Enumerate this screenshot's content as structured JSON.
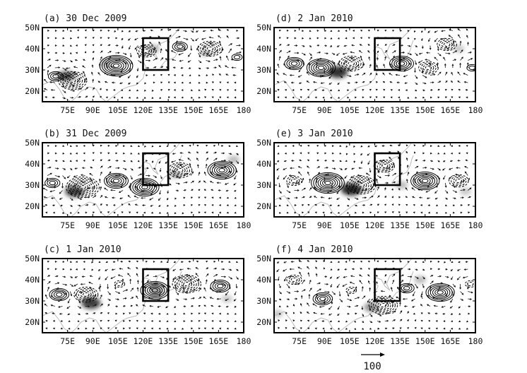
{
  "chart_data": [
    {
      "type": "contour",
      "panel": "a",
      "title": "(a) 30 Dec 2009",
      "lon_ticks": [
        "75E",
        "90E",
        "105E",
        "120E",
        "135E",
        "150E",
        "165E",
        "180"
      ],
      "lat_ticks": [
        "50N",
        "40N",
        "30N",
        "20N"
      ],
      "xlim": [
        60,
        180
      ],
      "ylim": [
        15,
        50
      ],
      "box": {
        "lon": [
          120,
          135
        ],
        "lat": [
          30,
          45
        ]
      },
      "anomalies": [
        {
          "lon": 68,
          "lat": 27,
          "sign": "positive",
          "levels": 3
        },
        {
          "lon": 78,
          "lat": 25,
          "sign": "negative",
          "levels": 6
        },
        {
          "lon": 104,
          "lat": 32,
          "sign": "positive",
          "levels": 7
        },
        {
          "lon": 122,
          "lat": 39,
          "sign": "negative",
          "levels": 4
        },
        {
          "lon": 142,
          "lat": 41,
          "sign": "positive",
          "levels": 3
        },
        {
          "lon": 160,
          "lat": 40,
          "sign": "negative",
          "levels": 5
        },
        {
          "lon": 176,
          "lat": 36,
          "sign": "positive",
          "levels": 2
        }
      ],
      "shading": [
        {
          "lon": 74,
          "lat": 27,
          "intensity": 0.7
        },
        {
          "lon": 98,
          "lat": 33,
          "intensity": 0.3
        },
        {
          "lon": 126,
          "lat": 40,
          "intensity": 0.35
        },
        {
          "lon": 157,
          "lat": 38,
          "intensity": 0.25
        }
      ]
    },
    {
      "type": "contour",
      "panel": "b",
      "title": "(b) 31 Dec 2009",
      "lon_ticks": [
        "75E",
        "90E",
        "105E",
        "120E",
        "135E",
        "150E",
        "165E",
        "180"
      ],
      "lat_ticks": [
        "50N",
        "40N",
        "30N",
        "20N"
      ],
      "xlim": [
        60,
        180
      ],
      "ylim": [
        15,
        50
      ],
      "box": {
        "lon": [
          120,
          135
        ],
        "lat": [
          30,
          45
        ]
      },
      "anomalies": [
        {
          "lon": 66,
          "lat": 31,
          "sign": "positive",
          "levels": 3
        },
        {
          "lon": 84,
          "lat": 29,
          "sign": "negative",
          "levels": 7
        },
        {
          "lon": 104,
          "lat": 32,
          "sign": "positive",
          "levels": 5
        },
        {
          "lon": 121,
          "lat": 29,
          "sign": "positive",
          "levels": 6
        },
        {
          "lon": 142,
          "lat": 37,
          "sign": "negative",
          "levels": 5
        },
        {
          "lon": 167,
          "lat": 37,
          "sign": "positive",
          "levels": 6
        }
      ],
      "shading": [
        {
          "lon": 79,
          "lat": 27,
          "intensity": 0.8
        },
        {
          "lon": 139,
          "lat": 35,
          "intensity": 0.3
        },
        {
          "lon": 174,
          "lat": 42,
          "intensity": 0.3
        }
      ]
    },
    {
      "type": "contour",
      "panel": "c",
      "title": "(c) 1 Jan 2010",
      "lon_ticks": [
        "75E",
        "90E",
        "105E",
        "120E",
        "135E",
        "150E",
        "165E",
        "180"
      ],
      "lat_ticks": [
        "50N",
        "40N",
        "30N",
        "20N"
      ],
      "xlim": [
        60,
        180
      ],
      "ylim": [
        15,
        50
      ],
      "box": {
        "lon": [
          120,
          135
        ],
        "lat": [
          30,
          45
        ]
      },
      "anomalies": [
        {
          "lon": 70,
          "lat": 33,
          "sign": "positive",
          "levels": 4
        },
        {
          "lon": 86,
          "lat": 33,
          "sign": "negative",
          "levels": 5
        },
        {
          "lon": 106,
          "lat": 38,
          "sign": "negative",
          "levels": 2
        },
        {
          "lon": 127,
          "lat": 35,
          "sign": "positive",
          "levels": 6
        },
        {
          "lon": 146,
          "lat": 38,
          "sign": "negative",
          "levels": 6
        },
        {
          "lon": 166,
          "lat": 37,
          "sign": "positive",
          "levels": 4
        }
      ],
      "shading": [
        {
          "lon": 89,
          "lat": 29,
          "intensity": 0.85
        },
        {
          "lon": 128,
          "lat": 35,
          "intensity": 0.4
        },
        {
          "lon": 170,
          "lat": 31,
          "intensity": 0.25
        }
      ]
    },
    {
      "type": "contour",
      "panel": "d",
      "title": "(d) 2 Jan 2010",
      "lon_ticks": [
        "75E",
        "90E",
        "105E",
        "120E",
        "135E",
        "150E",
        "165E",
        "180"
      ],
      "lat_ticks": [
        "50N",
        "40N",
        "30N",
        "20N"
      ],
      "xlim": [
        60,
        180
      ],
      "ylim": [
        15,
        50
      ],
      "box": {
        "lon": [
          120,
          135
        ],
        "lat": [
          30,
          45
        ]
      },
      "anomalies": [
        {
          "lon": 72,
          "lat": 33,
          "sign": "positive",
          "levels": 4
        },
        {
          "lon": 88,
          "lat": 31,
          "sign": "positive",
          "levels": 6
        },
        {
          "lon": 106,
          "lat": 33,
          "sign": "negative",
          "levels": 5
        },
        {
          "lon": 136,
          "lat": 33,
          "sign": "positive",
          "levels": 5
        },
        {
          "lon": 152,
          "lat": 31,
          "sign": "negative",
          "levels": 4
        },
        {
          "lon": 163,
          "lat": 42,
          "sign": "negative",
          "levels": 4
        },
        {
          "lon": 178,
          "lat": 31,
          "sign": "positive",
          "levels": 2
        }
      ],
      "shading": [
        {
          "lon": 98,
          "lat": 29,
          "intensity": 0.9
        },
        {
          "lon": 170,
          "lat": 40,
          "intensity": 0.25
        }
      ]
    },
    {
      "type": "contour",
      "panel": "e",
      "title": "(e) 3 Jan 2010",
      "lon_ticks": [
        "75E",
        "90E",
        "105E",
        "120E",
        "135E",
        "150E",
        "165E",
        "180"
      ],
      "lat_ticks": [
        "50N",
        "40N",
        "30N",
        "20N"
      ],
      "xlim": [
        60,
        180
      ],
      "ylim": [
        15,
        50
      ],
      "box": {
        "lon": [
          120,
          135
        ],
        "lat": [
          30,
          45
        ]
      },
      "anomalies": [
        {
          "lon": 72,
          "lat": 32,
          "sign": "negative",
          "levels": 3
        },
        {
          "lon": 92,
          "lat": 31,
          "sign": "positive",
          "levels": 7
        },
        {
          "lon": 112,
          "lat": 30,
          "sign": "negative",
          "levels": 6
        },
        {
          "lon": 126,
          "lat": 39,
          "sign": "negative",
          "levels": 4
        },
        {
          "lon": 150,
          "lat": 32,
          "sign": "positive",
          "levels": 6
        },
        {
          "lon": 170,
          "lat": 32,
          "sign": "negative",
          "levels": 4
        }
      ],
      "shading": [
        {
          "lon": 106,
          "lat": 28,
          "intensity": 0.95
        },
        {
          "lon": 136,
          "lat": 30,
          "intensity": 0.3
        },
        {
          "lon": 174,
          "lat": 27,
          "intensity": 0.25
        }
      ]
    },
    {
      "type": "contour",
      "panel": "f",
      "title": "(f) 4 Jan 2010",
      "lon_ticks": [
        "75E",
        "90E",
        "105E",
        "120E",
        "135E",
        "150E",
        "165E",
        "180"
      ],
      "lat_ticks": [
        "50N",
        "40N",
        "30N",
        "20N"
      ],
      "xlim": [
        60,
        180
      ],
      "ylim": [
        15,
        50
      ],
      "box": {
        "lon": [
          120,
          135
        ],
        "lat": [
          30,
          45
        ]
      },
      "anomalies": [
        {
          "lon": 72,
          "lat": 40,
          "sign": "negative",
          "levels": 3
        },
        {
          "lon": 89,
          "lat": 31,
          "sign": "positive",
          "levels": 4
        },
        {
          "lon": 106,
          "lat": 35,
          "sign": "negative",
          "levels": 2
        },
        {
          "lon": 125,
          "lat": 28,
          "sign": "negative",
          "levels": 6
        },
        {
          "lon": 139,
          "lat": 36,
          "sign": "positive",
          "levels": 3
        },
        {
          "lon": 159,
          "lat": 34,
          "sign": "positive",
          "levels": 6
        },
        {
          "lon": 177,
          "lat": 38,
          "sign": "negative",
          "levels": 2
        }
      ],
      "shading": [
        {
          "lon": 118,
          "lat": 27,
          "intensity": 0.5
        },
        {
          "lon": 147,
          "lat": 40,
          "intensity": 0.3
        },
        {
          "lon": 62,
          "lat": 24,
          "intensity": 0.25
        }
      ]
    }
  ],
  "reference_vector": {
    "label": "100"
  }
}
